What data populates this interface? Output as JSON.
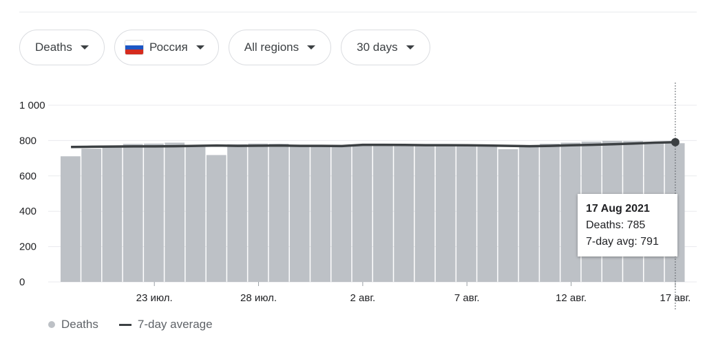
{
  "filters": {
    "metric": "Deaths",
    "country": "Россия",
    "region": "All regions",
    "period": "30 days"
  },
  "colors": {
    "bar": "#bdc1c6",
    "avg_line": "#3c4043",
    "grid": "#e8eaed",
    "flag_white": "#ffffff",
    "flag_blue": "#1c57c5",
    "flag_red": "#d52b1e"
  },
  "tooltip": {
    "date": "17 Aug 2021",
    "deaths": "Deaths: 785",
    "avg": "7-day avg: 791"
  },
  "legend": {
    "deaths": "Deaths",
    "avg": "7-day average"
  },
  "chart_data": {
    "type": "bar",
    "ylim": [
      0,
      1000
    ],
    "yticks": [
      0,
      200,
      400,
      600,
      800,
      1000
    ],
    "ytick_labels": [
      "0",
      "200",
      "400",
      "600",
      "800",
      "1 000"
    ],
    "xtick_labels": [
      {
        "index": 4,
        "label": "23 июл."
      },
      {
        "index": 9,
        "label": "28 июл."
      },
      {
        "index": 14,
        "label": "2 авг."
      },
      {
        "index": 19,
        "label": "7 авг."
      },
      {
        "index": 24,
        "label": "12 авг."
      },
      {
        "index": 29,
        "label": "17 авг."
      }
    ],
    "series": [
      {
        "name": "Deaths",
        "type": "bar",
        "values": [
          711,
          754,
          762,
          781,
          783,
          788,
          764,
          718,
          779,
          783,
          782,
          774,
          774,
          770,
          778,
          780,
          775,
          774,
          772,
          770,
          771,
          751,
          770,
          782,
          788,
          794,
          798,
          797,
          793,
          785
        ]
      },
      {
        "name": "7-day average",
        "type": "line",
        "values": [
          764,
          765,
          766,
          767,
          767,
          768,
          770,
          772,
          770,
          771,
          772,
          770,
          770,
          769,
          776,
          776,
          775,
          774,
          774,
          773,
          772,
          770,
          768,
          770,
          773,
          776,
          779,
          783,
          788,
          791
        ]
      }
    ]
  }
}
